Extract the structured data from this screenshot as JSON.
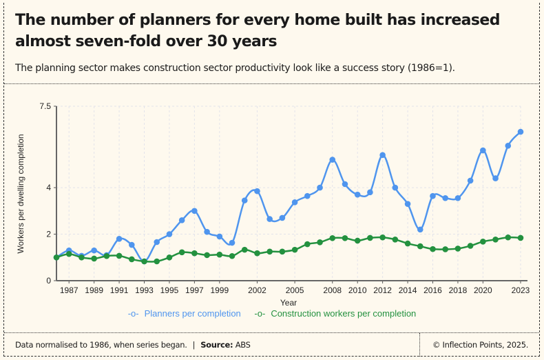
{
  "header": {
    "title": "The number of planners for every home built has increased almost seven-fold over 30 years",
    "subtitle": "The planning sector makes construction sector productivity look like a success story (1986=1)."
  },
  "footer": {
    "note": "Data normalised to 1986, when series began.",
    "source_label": "Source:",
    "source": "ABS",
    "copyright": "© Inflection Points, 2025."
  },
  "chart_data": {
    "type": "line",
    "xlabel": "Year",
    "ylabel": "Workers per dwelling completion",
    "x": [
      1986,
      1987,
      1988,
      1989,
      1990,
      1991,
      1992,
      1993,
      1994,
      1995,
      1996,
      1997,
      1998,
      1999,
      2000,
      2001,
      2002,
      2003,
      2004,
      2005,
      2006,
      2007,
      2008,
      2009,
      2010,
      2011,
      2012,
      2013,
      2014,
      2015,
      2016,
      2017,
      2018,
      2019,
      2020,
      2021,
      2022,
      2023
    ],
    "xlim": [
      1986,
      2023
    ],
    "ylim": [
      0,
      7.5
    ],
    "x_ticks": [
      1987,
      1989,
      1991,
      1993,
      1995,
      1997,
      1999,
      2002,
      2005,
      2008,
      2010,
      2012,
      2014,
      2016,
      2018,
      2020,
      2023
    ],
    "y_ticks": [
      0,
      2,
      4,
      7.5
    ],
    "grid": true,
    "legend_position": "bottom",
    "series": [
      {
        "name": "Planners per completion",
        "color": "#4f95ee",
        "values": [
          1.0,
          1.3,
          1.07,
          1.3,
          1.1,
          1.8,
          1.54,
          0.83,
          1.66,
          2.0,
          2.6,
          3.0,
          2.1,
          1.9,
          1.63,
          3.45,
          3.85,
          2.65,
          2.7,
          3.37,
          3.64,
          4.0,
          5.2,
          4.15,
          3.7,
          3.8,
          5.4,
          4.0,
          3.3,
          2.2,
          3.64,
          3.55,
          3.55,
          4.3,
          5.6,
          4.4,
          5.8,
          6.4
        ]
      },
      {
        "name": "Construction workers per completion",
        "color": "#23913f",
        "values": [
          1.0,
          1.15,
          1.0,
          0.95,
          1.06,
          1.07,
          0.92,
          0.83,
          0.83,
          1.0,
          1.22,
          1.18,
          1.1,
          1.12,
          1.06,
          1.33,
          1.18,
          1.25,
          1.25,
          1.33,
          1.57,
          1.65,
          1.83,
          1.83,
          1.72,
          1.84,
          1.86,
          1.77,
          1.6,
          1.48,
          1.36,
          1.35,
          1.38,
          1.5,
          1.68,
          1.77,
          1.86,
          1.84
        ]
      }
    ]
  }
}
